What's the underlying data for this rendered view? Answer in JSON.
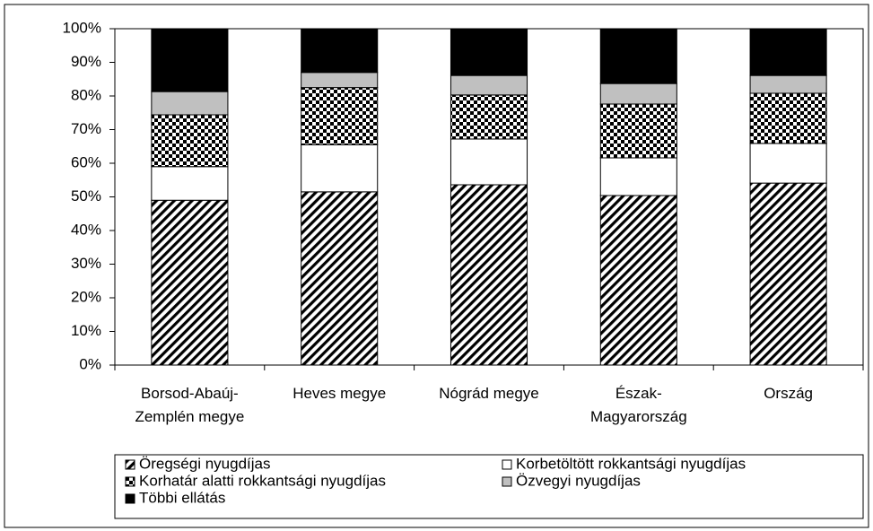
{
  "chart_data": {
    "type": "stacked_bar",
    "categories": [
      "Borsod-Abaúj-\nZemplén megye",
      "Heves megye",
      "Nógrád megye",
      "Észak-\nMagyarország",
      "Ország"
    ],
    "series": [
      {
        "name": "Öregségi nyugdíjas",
        "color": "#000000",
        "pattern": "diagonal",
        "values": [
          49,
          51.5,
          53.6,
          50.4,
          54.1
        ]
      },
      {
        "name": "Korbetöltött rokkantsági nyugdíjas",
        "color": "#ffffff",
        "pattern": "solid",
        "values": [
          10,
          14,
          13.6,
          11.2,
          11.8
        ]
      },
      {
        "name": "Korhatár alatti rokkantsági nyugdíjas",
        "color": "#000000",
        "pattern": "checker",
        "values": [
          15.4,
          17,
          13.1,
          16,
          14.9
        ]
      },
      {
        "name": "Özvegyi nyugdíjas",
        "color": "#c0c0c0",
        "pattern": "solid",
        "values": [
          6.9,
          4.5,
          5.8,
          6.1,
          5.3
        ]
      },
      {
        "name": "Többi ellátás",
        "color": "#000000",
        "pattern": "solid",
        "values": [
          18.7,
          13,
          13.9,
          16.3,
          13.9
        ]
      }
    ],
    "ylim": [
      0,
      100
    ],
    "yticks": [
      {
        "value": 0,
        "label": "0%"
      },
      {
        "value": 10,
        "label": "10%"
      },
      {
        "value": 20,
        "label": "20%"
      },
      {
        "value": 30,
        "label": "30%"
      },
      {
        "value": 40,
        "label": "40%"
      },
      {
        "value": 50,
        "label": "50%"
      },
      {
        "value": 60,
        "label": "60%"
      },
      {
        "value": 70,
        "label": "70%"
      },
      {
        "value": 80,
        "label": "80%"
      },
      {
        "value": 90,
        "label": "90%"
      },
      {
        "value": 100,
        "label": "100%"
      }
    ],
    "legend": "bottom"
  }
}
